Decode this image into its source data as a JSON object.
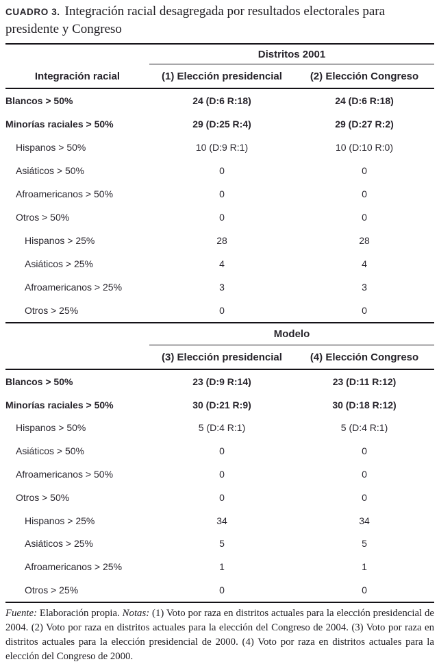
{
  "title": {
    "label": "CUADRO 3.",
    "text": "Integración racial desagregada por resultados electorales para presidente y Congreso"
  },
  "stub_header": "Integración racial",
  "sections": [
    {
      "group": "Distritos 2001",
      "col1": "(1) Elección presidencial",
      "col2": "(2) Elección Congreso",
      "rows": [
        {
          "label": "Blancos > 50%",
          "v1": "24 (D:6 R:18)",
          "v2": "24 (D:6 R:18)"
        },
        {
          "label": "Minorías raciales > 50%",
          "v1": "29 (D:25 R:4)",
          "v2": "29 (D:27 R:2)"
        },
        {
          "label": "Hispanos > 50%",
          "v1": "10 (D:9 R:1)",
          "v2": "10 (D:10 R:0)"
        },
        {
          "label": "Asiáticos > 50%",
          "v1": "0",
          "v2": "0"
        },
        {
          "label": "Afroamericanos > 50%",
          "v1": "0",
          "v2": "0"
        },
        {
          "label": "Otros > 50%",
          "v1": "0",
          "v2": "0"
        },
        {
          "label": "Hispanos > 25%",
          "v1": "28",
          "v2": "28"
        },
        {
          "label": "Asiáticos > 25%",
          "v1": "4",
          "v2": "4"
        },
        {
          "label": "Afroamericanos > 25%",
          "v1": "3",
          "v2": "3"
        },
        {
          "label": "Otros > 25%",
          "v1": "0",
          "v2": "0"
        }
      ]
    },
    {
      "group": "Modelo",
      "col1": "(3) Elección presidencial",
      "col2": "(4) Elección Congreso",
      "rows": [
        {
          "label": "Blancos > 50%",
          "v1": "23 (D:9 R:14)",
          "v2": "23 (D:11 R:12)"
        },
        {
          "label": "Minorías raciales > 50%",
          "v1": "30 (D:21 R:9)",
          "v2": "30 (D:18 R:12)"
        },
        {
          "label": "Hispanos > 50%",
          "v1": "5 (D:4 R:1)",
          "v2": "5 (D:4 R:1)"
        },
        {
          "label": "Asiáticos > 50%",
          "v1": "0",
          "v2": "0"
        },
        {
          "label": "Afroamericanos > 50%",
          "v1": "0",
          "v2": "0"
        },
        {
          "label": "Otros > 50%",
          "v1": "0",
          "v2": "0"
        },
        {
          "label": "Hispanos > 25%",
          "v1": "34",
          "v2": "34"
        },
        {
          "label": "Asiáticos > 25%",
          "v1": "5",
          "v2": "5"
        },
        {
          "label": "Afroamericanos > 25%",
          "v1": "1",
          "v2": "1"
        },
        {
          "label": "Otros > 25%",
          "v1": "0",
          "v2": "0"
        }
      ]
    }
  ],
  "footer": {
    "fuente_label": "Fuente:",
    "fuente_text": " Elaboración propia. ",
    "notas_label": "Notas:",
    "notas_text": " (1) Voto por raza en distritos actuales para la elección presidencial de 2004. (2) Voto por raza en distritos actuales para la elección del Congreso de 2004. (3) Voto por raza en distritos ac­tuales para la elección presidencial de 2000. (4) Voto por raza en distritos actuales para la elección del Congre­so de 2000."
  },
  "colors": {
    "text_ink": "#29262e",
    "rule": "#141217",
    "background": "#ffffff"
  }
}
